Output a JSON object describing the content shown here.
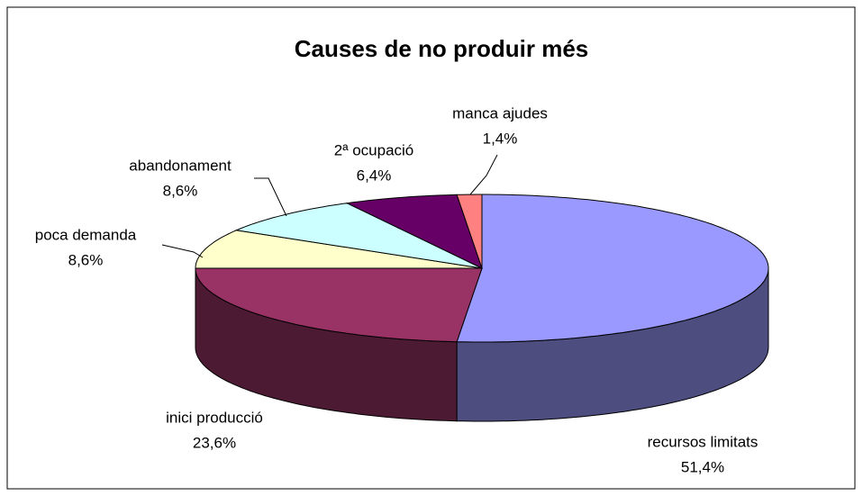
{
  "chart_data": {
    "type": "pie3d",
    "title": "Causes de no produir més",
    "categories": [
      "recursos limitats",
      "inici producció",
      "poca demanda",
      "abandonament",
      "2ª ocupació",
      "manca ajudes"
    ],
    "values": [
      51.4,
      23.6,
      8.6,
      8.6,
      6.4,
      1.4
    ],
    "value_labels": [
      "51,4%",
      "23,6%",
      "8,6%",
      "8,6%",
      "6,4%",
      "1,4%"
    ],
    "colors": [
      "#9999ff",
      "#993366",
      "#ffffcc",
      "#ccffff",
      "#660066",
      "#ff8080"
    ]
  }
}
